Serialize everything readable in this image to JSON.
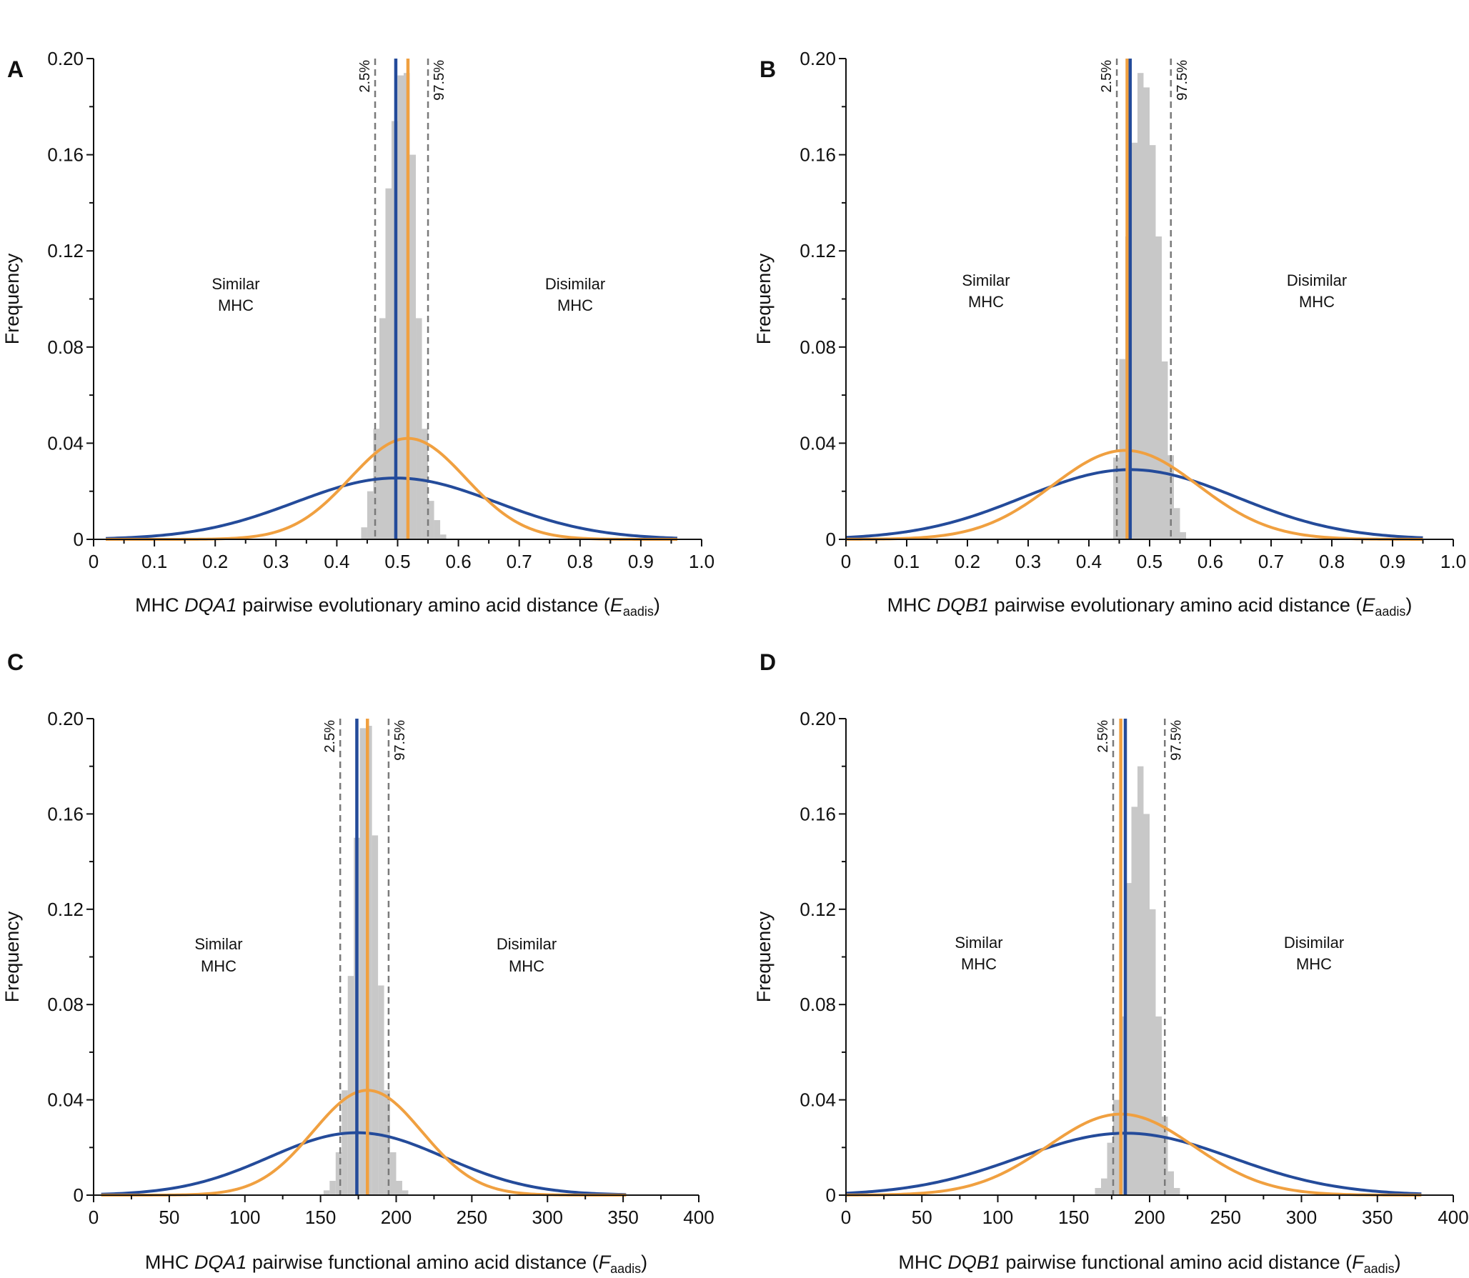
{
  "figure": {
    "colors": {
      "histogram": "#c8c8c8",
      "observed": "#244b9a",
      "expected": "#f0a040",
      "ci_line": "#7a7a7a",
      "axis": "#111111"
    }
  },
  "chart_data": [
    {
      "panel": "A",
      "type": "histogram",
      "ylabel": "Frequency",
      "xlabel_parts": {
        "pre": "MHC ",
        "gene": "DQA1",
        "mid": " pairwise evolutionary amino acid distance (",
        "sym": "E",
        "sub": "aadis",
        "post": ")"
      },
      "xlim": [
        0,
        1.0
      ],
      "ylim": [
        0,
        0.2
      ],
      "xticks": [
        "0",
        "0.1",
        "0.2",
        "0.3",
        "0.4",
        "0.5",
        "0.6",
        "0.7",
        "0.8",
        "0.9",
        "1.0"
      ],
      "xtick_values": [
        0,
        0.1,
        0.2,
        0.3,
        0.4,
        0.5,
        0.6,
        0.7,
        0.8,
        0.9,
        1.0
      ],
      "yticks": [
        "0",
        "0.04",
        "0.08",
        "0.12",
        "0.16",
        "0.20"
      ],
      "ytick_values": [
        0,
        0.04,
        0.08,
        0.12,
        0.16,
        0.2
      ],
      "y_minor_ticks": [
        0.02,
        0.06,
        0.1,
        0.14,
        0.18
      ],
      "histogram": {
        "bin_width": 0.01,
        "bin_starts": [
          0.44,
          0.45,
          0.46,
          0.47,
          0.48,
          0.49,
          0.5,
          0.51,
          0.52,
          0.53,
          0.54,
          0.55,
          0.56,
          0.57
        ],
        "values": [
          0.005,
          0.02,
          0.046,
          0.092,
          0.146,
          0.174,
          0.193,
          0.194,
          0.16,
          0.092,
          0.046,
          0.016,
          0.008,
          0.002
        ]
      },
      "ci_labels": [
        "2.5%",
        "97.5%"
      ],
      "ci_values": [
        0.463,
        0.55
      ],
      "observed_mean": 0.497,
      "expected_mean": 0.517,
      "observed_curve": {
        "mean": 0.497,
        "sd": 0.165,
        "peak": 0.0255,
        "range": [
          0.02,
          0.96
        ]
      },
      "expected_curve": {
        "mean": 0.517,
        "sd": 0.095,
        "peak": 0.042,
        "range": [
          0.02,
          0.96
        ]
      },
      "region_labels": {
        "similar": [
          "Similar",
          "MHC"
        ],
        "dissimilar": [
          "Disimilar",
          "MHC"
        ]
      }
    },
    {
      "panel": "B",
      "type": "histogram",
      "ylabel": "Frequency",
      "xlabel_parts": {
        "pre": "MHC ",
        "gene": "DQB1",
        "mid": " pairwise evolutionary amino acid distance (",
        "sym": "E",
        "sub": "aadis",
        "post": ")"
      },
      "xlim": [
        0,
        1.0
      ],
      "ylim": [
        0,
        0.2
      ],
      "xticks": [
        "0",
        "0.1",
        "0.2",
        "0.3",
        "0.4",
        "0.5",
        "0.6",
        "0.7",
        "0.8",
        "0.9",
        "1.0"
      ],
      "xtick_values": [
        0,
        0.1,
        0.2,
        0.3,
        0.4,
        0.5,
        0.6,
        0.7,
        0.8,
        0.9,
        1.0
      ],
      "yticks": [
        "0",
        "0.04",
        "0.08",
        "0.12",
        "0.16",
        "0.20"
      ],
      "ytick_values": [
        0,
        0.04,
        0.08,
        0.12,
        0.16,
        0.2
      ],
      "y_minor_ticks": [
        0.02,
        0.06,
        0.1,
        0.14,
        0.18
      ],
      "histogram": {
        "bin_width": 0.01,
        "bin_starts": [
          0.44,
          0.45,
          0.46,
          0.47,
          0.48,
          0.49,
          0.5,
          0.51,
          0.52,
          0.53,
          0.54,
          0.55
        ],
        "values": [
          0.034,
          0.075,
          0.126,
          0.165,
          0.194,
          0.188,
          0.164,
          0.126,
          0.074,
          0.035,
          0.013,
          0.003
        ]
      },
      "ci_labels": [
        "2.5%",
        "97.5%"
      ],
      "ci_values": [
        0.446,
        0.535
      ],
      "observed_mean": 0.468,
      "expected_mean": 0.463,
      "observed_curve": {
        "mean": 0.468,
        "sd": 0.175,
        "peak": 0.029,
        "range": [
          0.0,
          0.95
        ]
      },
      "expected_curve": {
        "mean": 0.46,
        "sd": 0.12,
        "peak": 0.037,
        "range": [
          0.0,
          0.95
        ]
      },
      "region_labels": {
        "similar": [
          "Similar",
          "MHC"
        ],
        "dissimilar": [
          "Disimilar",
          "MHC"
        ]
      }
    },
    {
      "panel": "C",
      "type": "histogram",
      "ylabel": "Frequency",
      "xlabel_parts": {
        "pre": "MHC ",
        "gene": "DQA1",
        "mid": " pairwise functional amino acid distance (",
        "sym": "F",
        "sub": "aadis",
        "post": ")"
      },
      "xlim": [
        0,
        400
      ],
      "ylim": [
        0,
        0.2
      ],
      "xticks": [
        "0",
        "50",
        "100",
        "150",
        "200",
        "250",
        "300",
        "350",
        "400"
      ],
      "xtick_values": [
        0,
        50,
        100,
        150,
        200,
        250,
        300,
        350,
        400
      ],
      "yticks": [
        "0",
        "0.04",
        "0.08",
        "0.12",
        "0.16",
        "0.20"
      ],
      "ytick_values": [
        0,
        0.04,
        0.08,
        0.12,
        0.16,
        0.2
      ],
      "y_minor_ticks": [
        0.02,
        0.06,
        0.1,
        0.14,
        0.18
      ],
      "histogram": {
        "bin_width": 4,
        "bin_starts": [
          152,
          156,
          160,
          164,
          168,
          172,
          176,
          180,
          184,
          188,
          192,
          196,
          200,
          204
        ],
        "values": [
          0.002,
          0.006,
          0.018,
          0.044,
          0.092,
          0.15,
          0.196,
          0.197,
          0.151,
          0.088,
          0.044,
          0.018,
          0.006,
          0.002
        ]
      },
      "ci_labels": [
        "2.5%",
        "97.5%"
      ],
      "ci_values": [
        163,
        195
      ],
      "observed_mean": 174,
      "expected_mean": 181,
      "observed_curve": {
        "mean": 174,
        "sd": 58,
        "peak": 0.0262,
        "range": [
          5,
          352
        ]
      },
      "expected_curve": {
        "mean": 181,
        "sd": 36,
        "peak": 0.044,
        "range": [
          5,
          352
        ]
      },
      "region_labels": {
        "similar": [
          "Similar",
          "MHC"
        ],
        "dissimilar": [
          "Disimilar",
          "MHC"
        ]
      }
    },
    {
      "panel": "D",
      "type": "histogram",
      "ylabel": "Frequency",
      "xlabel_parts": {
        "pre": "MHC ",
        "gene": "DQB1",
        "mid": " pairwise functional amino acid distance (",
        "sym": "F",
        "sub": "aadis",
        "post": ")"
      },
      "xlim": [
        0,
        400
      ],
      "ylim": [
        0,
        0.2
      ],
      "xticks": [
        "0",
        "50",
        "100",
        "150",
        "200",
        "250",
        "300",
        "350",
        "400"
      ],
      "xtick_values": [
        0,
        50,
        100,
        150,
        200,
        250,
        300,
        350,
        400
      ],
      "yticks": [
        "0",
        "0.04",
        "0.08",
        "0.12",
        "0.16",
        "0.20"
      ],
      "ytick_values": [
        0,
        0.04,
        0.08,
        0.12,
        0.16,
        0.2
      ],
      "y_minor_ticks": [
        0.02,
        0.06,
        0.1,
        0.14,
        0.18
      ],
      "histogram": {
        "bin_width": 4,
        "bin_starts": [
          164,
          168,
          172,
          176,
          180,
          184,
          188,
          192,
          196,
          200,
          204,
          208,
          212,
          216
        ],
        "values": [
          0.003,
          0.007,
          0.022,
          0.04,
          0.075,
          0.131,
          0.163,
          0.18,
          0.16,
          0.12,
          0.075,
          0.033,
          0.01,
          0.003
        ]
      },
      "ci_labels": [
        "2.5%",
        "97.5%"
      ],
      "ci_values": [
        176,
        210
      ],
      "observed_mean": 184,
      "expected_mean": 181,
      "observed_curve": {
        "mean": 184,
        "sd": 70,
        "peak": 0.026,
        "range": [
          0,
          379
        ]
      },
      "expected_curve": {
        "mean": 181,
        "sd": 48,
        "peak": 0.034,
        "range": [
          0,
          379
        ]
      },
      "region_labels": {
        "similar": [
          "Similar",
          "MHC"
        ],
        "dissimilar": [
          "Disimilar",
          "MHC"
        ]
      }
    }
  ]
}
